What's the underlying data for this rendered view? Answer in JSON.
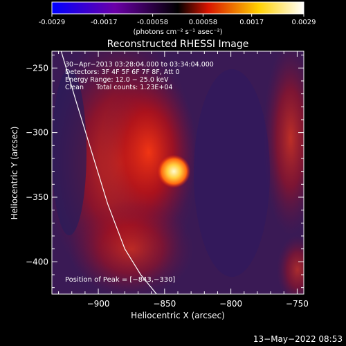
{
  "colorbar": {
    "tick_labels": [
      "-0.0029",
      "-0.0017",
      "-0.00058",
      "0.00058",
      "0.0017",
      "0.0029"
    ],
    "tick_values": [
      -0.0029,
      -0.0017,
      -0.00058,
      0.00058,
      0.0017,
      0.0029
    ],
    "range": [
      -0.0029,
      0.0029
    ],
    "unit_label": "(photons cm⁻² s⁻¹ asec⁻²)",
    "colors": [
      "#0000ff",
      "#6b00a8",
      "#000000",
      "#d81400",
      "#ffd000",
      "#ffffff"
    ]
  },
  "chart_data": {
    "type": "heatmap",
    "title": "Reconstructed RHESSI Image",
    "xlabel": "Heliocentric X (arcsec)",
    "ylabel": "Heliocentric Y (arcsec)",
    "xlim": [
      -935,
      -745
    ],
    "ylim": [
      -425,
      -237
    ],
    "xticks": [
      -900,
      -850,
      -800,
      -750
    ],
    "xtick_labels": [
      "−900",
      "−850",
      "−800",
      "−750"
    ],
    "yticks": [
      -400,
      -350,
      -300,
      -250
    ],
    "ytick_labels": [
      "−400",
      "−350",
      "−300",
      "−250"
    ],
    "grid": false,
    "peak": {
      "x": -843,
      "y": -330
    },
    "source_colors": {
      "background": "#3a1a55",
      "core": "#fff6a8",
      "halo": "#d01010"
    },
    "limb_curve": {
      "x": [
        -928,
        -917,
        -905,
        -893,
        -880,
        -868,
        -856
      ],
      "y": [
        -237,
        -275,
        -315,
        -355,
        -390,
        -410,
        -425
      ]
    },
    "annotations": [
      "30−Apr−2013 03:28:04.000 to 03:34:04.000",
      "Detectors: 3F 4F 5F 6F 7F 8F, Att 0",
      "Energy Range: 12.0 − 25.0 keV",
      "Clean      Total counts: 1.23E+04"
    ],
    "peak_label": "Position of Peak = [−843,−330]"
  },
  "footer": {
    "timestamp": "13−May−2022 08:53"
  }
}
